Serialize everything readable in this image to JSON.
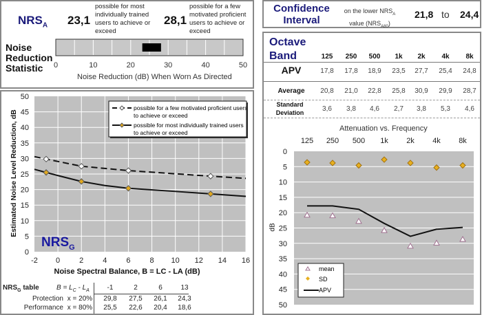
{
  "nrsa": {
    "label": "NRS",
    "label_sub": "A",
    "low_value": "23,1",
    "low_desc": "possible for most individually trained users to achieve or exceed",
    "high_value": "28,1",
    "high_desc": "possible for a few motivated proficient users to achieve or exceed",
    "statistic_label": "Noise Reduction Statistic",
    "range": [
      23.1,
      28.1
    ],
    "axis_ticks": [
      "0",
      "10",
      "20",
      "30",
      "40",
      "50"
    ],
    "axis_title": "Noise Reduction (dB) When Worn As Directed"
  },
  "confidence": {
    "title": "Confidence Interval",
    "desc_line1": "on the lower NRS",
    "desc_sub1": "A",
    "desc_line2": "value (NRS",
    "desc_sub2": "A80",
    "desc_end": ")",
    "low": "21,8",
    "to": "to",
    "high": "24,4"
  },
  "octave": {
    "title": "Octave Band",
    "bands": [
      "125",
      "250",
      "500",
      "1k",
      "2k",
      "4k",
      "8k"
    ],
    "rows": [
      {
        "label": "APV",
        "values": [
          "17,8",
          "17,8",
          "18,9",
          "23,5",
          "27,7",
          "25,4",
          "24,8"
        ]
      },
      {
        "label": "Average",
        "values": [
          "20,8",
          "21,0",
          "22,8",
          "25,8",
          "30,9",
          "29,9",
          "28,7"
        ]
      },
      {
        "label": "Standard Deviation",
        "values": [
          "3,6",
          "3,8",
          "4,6",
          "2,7",
          "3,8",
          "5,3",
          "4,6"
        ]
      }
    ]
  },
  "nrsg_table": {
    "title": "NRS",
    "title_sub": "G",
    "title_end": " table",
    "b_label": "B = L",
    "b_sub1": "C",
    "b_mid": " - L",
    "b_sub2": "A",
    "columns": [
      "-1",
      "2",
      "6",
      "13"
    ],
    "rows": [
      {
        "label": "Protection",
        "x": "x = 20%",
        "values": [
          "29,8",
          "27,5",
          "26,1",
          "24,3"
        ]
      },
      {
        "label": "Performance",
        "x": "x = 80%",
        "values": [
          "25,5",
          "22,6",
          "20,4",
          "18,6"
        ]
      }
    ]
  },
  "chart_data": [
    {
      "type": "line",
      "title": "NRSG",
      "title_main": "NRS",
      "title_sub": "G",
      "xlabel": "Noise Spectral Balance, B = LC - LA (dB)",
      "ylabel": "Estimated Noise Level Reduction, dB",
      "xlim": [
        -2,
        16
      ],
      "ylim": [
        0,
        50
      ],
      "xticks": [
        "-2",
        "0",
        "2",
        "4",
        "6",
        "8",
        "10",
        "12",
        "14",
        "16"
      ],
      "yticks": [
        "0",
        "5",
        "10",
        "15",
        "20",
        "25",
        "30",
        "35",
        "40",
        "45",
        "50"
      ],
      "grid": true,
      "legend": "top-right",
      "series": [
        {
          "name": "possible for a few motivated proficient users to achieve or exceed",
          "legend_line1": "possible for a few motivated proficient users",
          "legend_line2": "to achieve or exceed",
          "style": "dashed",
          "marker": "white-diamond",
          "points": [
            [
              -1,
              29.8
            ],
            [
              2,
              27.5
            ],
            [
              6,
              26.1
            ],
            [
              13,
              24.3
            ]
          ],
          "curve": [
            [
              -2,
              30.6
            ],
            [
              -1,
              29.8
            ],
            [
              2,
              27.5
            ],
            [
              6,
              26.1
            ],
            [
              13,
              24.3
            ],
            [
              16,
              23.6
            ]
          ]
        },
        {
          "name": "possible for most individually trained users to achieve or exceed",
          "legend_line1": "possible for most individually trained users",
          "legend_line2": "to achieve or exceed",
          "style": "solid",
          "marker": "gold-diamond",
          "points": [
            [
              -1,
              25.5
            ],
            [
              2,
              22.6
            ],
            [
              6,
              20.4
            ],
            [
              13,
              18.6
            ]
          ],
          "curve": [
            [
              -2,
              26.5
            ],
            [
              -1,
              25.5
            ],
            [
              0,
              24.5
            ],
            [
              2,
              22.6
            ],
            [
              4,
              21.3
            ],
            [
              6,
              20.4
            ],
            [
              10,
              19.4
            ],
            [
              13,
              18.6
            ],
            [
              16,
              17.8
            ]
          ]
        }
      ]
    },
    {
      "type": "line",
      "title": "Attenuation vs. Frequency",
      "categories": [
        "125",
        "250",
        "500",
        "1k",
        "2k",
        "4k",
        "8k"
      ],
      "ylabel": "dB",
      "ylim": [
        0,
        50
      ],
      "y_inverted": true,
      "yticks": [
        "0",
        "5",
        "10",
        "15",
        "20",
        "25",
        "30",
        "35",
        "40",
        "45",
        "50"
      ],
      "grid": true,
      "legend": "bottom-left",
      "series": [
        {
          "name": "mean",
          "marker": "triangle",
          "values": [
            20.8,
            21.0,
            22.8,
            25.8,
            30.9,
            29.9,
            28.7
          ]
        },
        {
          "name": "SD",
          "marker": "diamond",
          "values": [
            3.6,
            3.8,
            4.6,
            2.7,
            3.8,
            5.3,
            4.6
          ]
        },
        {
          "name": "APV",
          "marker": "line",
          "values": [
            17.8,
            17.8,
            18.9,
            23.5,
            27.7,
            25.4,
            24.8
          ]
        }
      ]
    }
  ],
  "colors": {
    "navy": "#1a1a7a",
    "plot_bg": "#c0c0c0",
    "gold": "#e0a020"
  }
}
